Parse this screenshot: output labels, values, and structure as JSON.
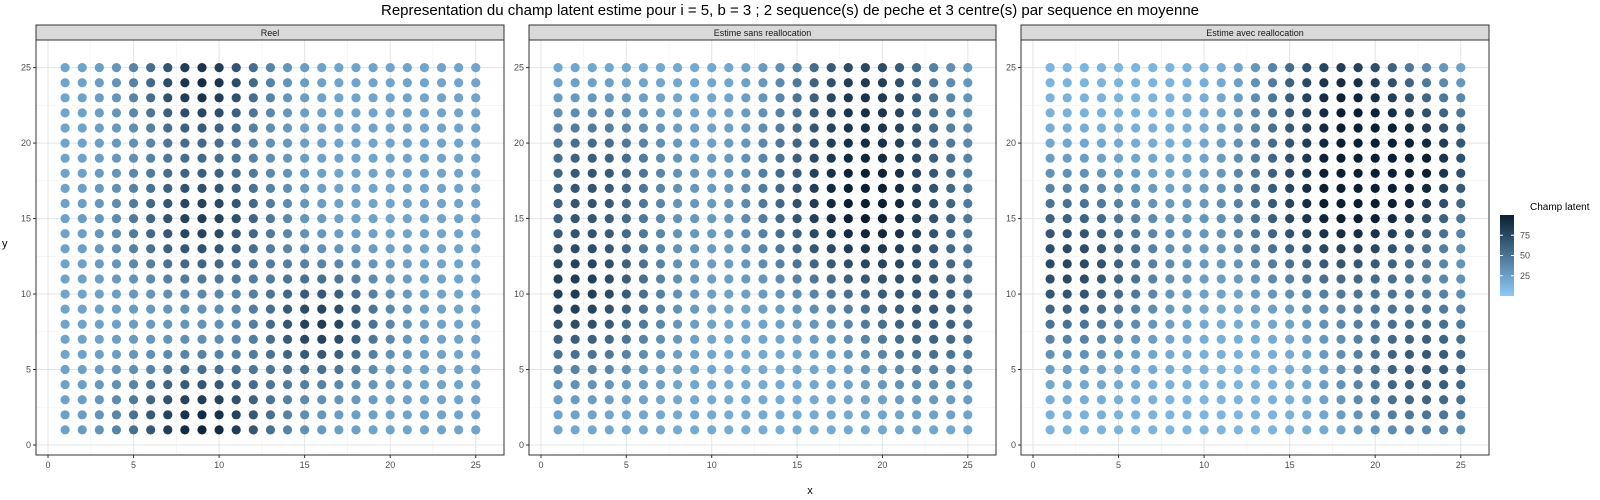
{
  "chart_data": {
    "type": "scatter",
    "title": "Representation du champ latent estime pour i = 5, b = 3 ; 2 sequence(s) de peche et 3 centre(s) par sequence en moyenne",
    "xlabel": "x",
    "ylabel": "y",
    "xlim": [
      0,
      26
    ],
    "ylim": [
      0,
      26
    ],
    "x_ticks": [
      0,
      5,
      10,
      15,
      20,
      25
    ],
    "y_ticks": [
      0,
      5,
      10,
      15,
      20,
      25
    ],
    "grid": true,
    "grid_points": {
      "x_range": [
        1,
        25
      ],
      "y_range": [
        1,
        25
      ],
      "step": 1
    },
    "legend": {
      "title": "Champ latent",
      "ticks": [
        25,
        50,
        75
      ],
      "range": [
        0,
        100
      ],
      "low_color": "#8ccaf7",
      "high_color": "#0b1f33",
      "position": "right"
    },
    "panels": [
      {
        "name": "Reel",
        "base": 22,
        "hotspots": [
          {
            "x": 9,
            "y": 24,
            "value": 70,
            "radius": 2.5
          },
          {
            "x": 9,
            "y": 15,
            "value": 60,
            "radius": 3
          },
          {
            "x": 9,
            "y": 1,
            "value": 75,
            "radius": 3
          },
          {
            "x": 16,
            "y": 8,
            "value": 60,
            "radius": 2.5
          }
        ]
      },
      {
        "name": "Estime sans reallocation",
        "base": 18,
        "hotspots": [
          {
            "x": 19,
            "y": 16,
            "value": 85,
            "radius": 4
          },
          {
            "x": 19,
            "y": 24,
            "value": 55,
            "radius": 3
          },
          {
            "x": 2,
            "y": 10,
            "value": 65,
            "radius": 3.5
          },
          {
            "x": 3,
            "y": 18,
            "value": 45,
            "radius": 3
          },
          {
            "x": 23,
            "y": 8,
            "value": 40,
            "radius": 3
          }
        ]
      },
      {
        "name": "Estime avec reallocation",
        "base": 12,
        "hotspots": [
          {
            "x": 18,
            "y": 16,
            "value": 85,
            "radius": 4
          },
          {
            "x": 18,
            "y": 24,
            "value": 65,
            "radius": 3
          },
          {
            "x": 2,
            "y": 12,
            "value": 65,
            "radius": 4
          },
          {
            "x": 23,
            "y": 5,
            "value": 55,
            "radius": 3.5
          },
          {
            "x": 23,
            "y": 19,
            "value": 55,
            "radius": 3
          }
        ]
      }
    ]
  }
}
